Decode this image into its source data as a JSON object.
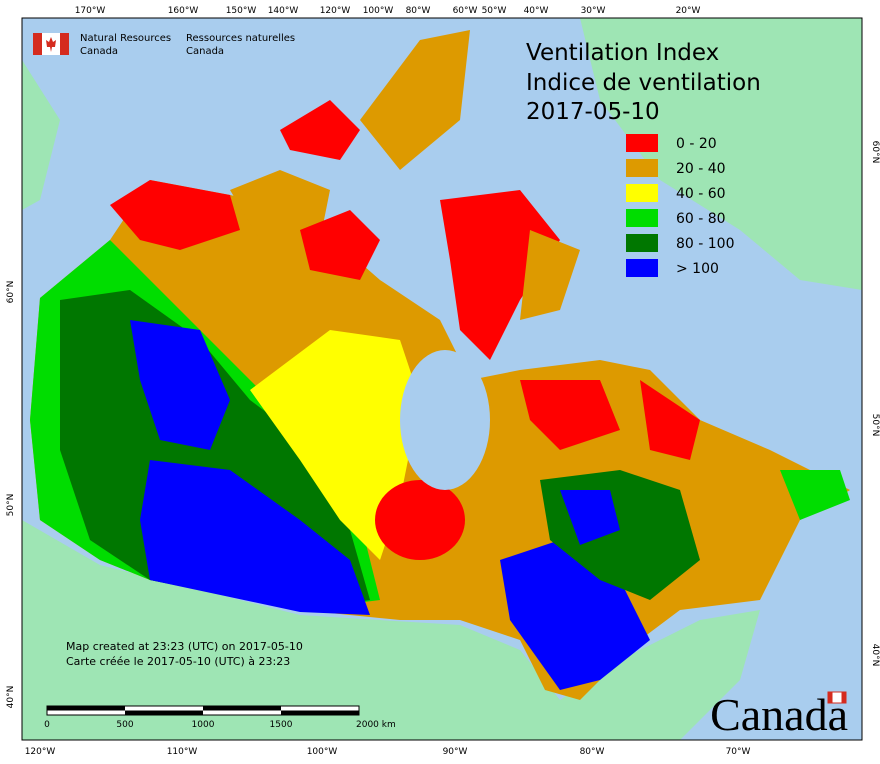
{
  "header": {
    "agency_en": "Natural Resources",
    "agency_en_2": "Canada",
    "agency_fr": "Ressources naturelles",
    "agency_fr_2": "Canada"
  },
  "title": {
    "line1": "Ventilation Index",
    "line2": "Indice de ventilation",
    "date": "2017-05-10"
  },
  "legend": [
    {
      "label": "0 - 20",
      "color": "#ff0000"
    },
    {
      "label": "20 - 40",
      "color": "#dd9a00"
    },
    {
      "label": "40 - 60",
      "color": "#ffff00"
    },
    {
      "label": "60 - 80",
      "color": "#00dd00"
    },
    {
      "label": "80 - 100",
      "color": "#007700"
    },
    {
      "label": "> 100",
      "color": "#0000ff"
    }
  ],
  "graticule": {
    "top": [
      "170°W",
      "160°W",
      "150°W",
      "140°W",
      "120°W",
      "100°W",
      "80°W",
      "60°W",
      "50°W",
      "40°W",
      "30°W",
      "20°W"
    ],
    "bottom": [
      "120°W",
      "110°W",
      "100°W",
      "90°W",
      "80°W",
      "70°W"
    ],
    "left": [
      "60°N",
      "50°N",
      "40°N"
    ],
    "right": [
      "60°N",
      "50°N",
      "40°N"
    ]
  },
  "notes": {
    "line1": "Map created at 23:23 (UTC) on 2017-05-10",
    "line2": "Carte créée le 2017-05-10 (UTC) à 23:23"
  },
  "scale_bar": [
    "0",
    "500",
    "1000",
    "1500",
    "2000 km"
  ],
  "wordmark": "Canada"
}
